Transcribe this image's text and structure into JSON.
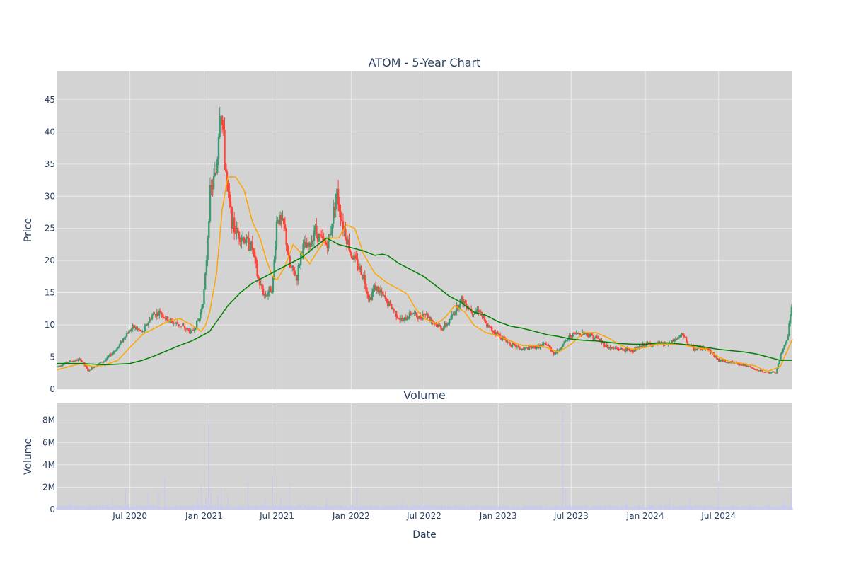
{
  "chart_data": [
    {
      "type": "candlestick",
      "title": "ATOM - 5-Year Chart",
      "ylabel": "Price",
      "ylim": [
        0,
        49.5
      ],
      "yticks": [
        0,
        5,
        10,
        15,
        20,
        25,
        30,
        35,
        40,
        45
      ],
      "xlim": [
        "2020-01-01",
        "2024-12-31"
      ],
      "grid": true,
      "legend": "none",
      "colors": {
        "up": "#3d9970",
        "down": "#ff4136",
        "ma_short": "#ffa500",
        "ma_long": "#008000",
        "plot_bg": "#d3d3d3",
        "grid": "#ebebeb"
      },
      "close_series": {
        "x": [
          "2020-01-01",
          "2020-02-01",
          "2020-03-01",
          "2020-03-20",
          "2020-04-01",
          "2020-05-01",
          "2020-06-01",
          "2020-06-20",
          "2020-07-10",
          "2020-08-01",
          "2020-08-25",
          "2020-09-15",
          "2020-10-01",
          "2020-11-01",
          "2020-12-01",
          "2020-12-20",
          "2020-12-31",
          "2021-01-05",
          "2021-01-15",
          "2021-02-01",
          "2021-02-10",
          "2021-02-20",
          "2021-03-01",
          "2021-03-15",
          "2021-04-01",
          "2021-04-15",
          "2021-05-01",
          "2021-05-15",
          "2021-06-01",
          "2021-06-20",
          "2021-07-01",
          "2021-07-20",
          "2021-08-01",
          "2021-08-20",
          "2021-09-01",
          "2021-09-20",
          "2021-10-01",
          "2021-10-20",
          "2021-11-01",
          "2021-11-10",
          "2021-11-25",
          "2021-12-10",
          "2022-01-01",
          "2022-01-20",
          "2022-02-01",
          "2022-02-15",
          "2022-03-01",
          "2022-03-20",
          "2022-04-01",
          "2022-04-20",
          "2022-05-01",
          "2022-05-10",
          "2022-06-01",
          "2022-06-20",
          "2022-07-01",
          "2022-08-01",
          "2022-08-15",
          "2022-09-01",
          "2022-10-01",
          "2022-11-01",
          "2022-11-15",
          "2022-12-01",
          "2023-01-01",
          "2023-02-01",
          "2023-03-01",
          "2023-04-01",
          "2023-05-01",
          "2023-05-20",
          "2023-06-01",
          "2023-07-01",
          "2023-08-01",
          "2023-09-01",
          "2023-10-01",
          "2023-11-01",
          "2023-12-01",
          "2024-01-01",
          "2024-02-01",
          "2024-03-01",
          "2024-04-01",
          "2024-04-20",
          "2024-05-01",
          "2024-06-01",
          "2024-07-01",
          "2024-08-01",
          "2024-09-01",
          "2024-10-01",
          "2024-11-01",
          "2024-11-20",
          "2024-12-01",
          "2024-12-20",
          "2024-12-31"
        ],
        "y": [
          3.5,
          4.3,
          4.6,
          2.8,
          3.5,
          4.5,
          6.5,
          8.5,
          9.7,
          8.8,
          11.5,
          12.0,
          10.8,
          10.0,
          8.8,
          11.0,
          14.5,
          18.0,
          30.0,
          34.0,
          45.0,
          37.0,
          30.0,
          25.0,
          24.0,
          23.0,
          22.0,
          17.0,
          14.5,
          16.0,
          27.0,
          25.0,
          19.0,
          17.5,
          22.0,
          22.0,
          25.0,
          23.0,
          22.5,
          24.0,
          31.0,
          26.0,
          21.0,
          19.0,
          17.5,
          14.0,
          16.0,
          14.5,
          13.5,
          12.0,
          11.0,
          10.5,
          12.0,
          11.0,
          12.0,
          10.0,
          9.5,
          10.5,
          14.0,
          12.0,
          12.5,
          10.0,
          8.5,
          7.0,
          6.2,
          6.5,
          7.0,
          5.5,
          6.2,
          8.5,
          8.8,
          8.0,
          6.5,
          6.2,
          6.0,
          7.0,
          7.0,
          7.0,
          8.5,
          6.8,
          6.2,
          6.5,
          4.5,
          4.2,
          3.8,
          3.0,
          2.6,
          2.6,
          5.0,
          8.5,
          14.0
        ]
      },
      "ma_short": {
        "x": [
          "2020-01-01",
          "2020-03-01",
          "2020-04-01",
          "2020-05-01",
          "2020-06-01",
          "2020-07-01",
          "2020-08-01",
          "2020-09-01",
          "2020-10-01",
          "2020-11-01",
          "2020-12-01",
          "2020-12-25",
          "2021-01-05",
          "2021-01-15",
          "2021-02-01",
          "2021-02-15",
          "2021-03-01",
          "2021-03-20",
          "2021-04-10",
          "2021-05-01",
          "2021-05-20",
          "2021-06-05",
          "2021-06-20",
          "2021-07-01",
          "2021-07-20",
          "2021-08-10",
          "2021-09-01",
          "2021-09-20",
          "2021-10-10",
          "2021-11-01",
          "2021-12-01",
          "2021-12-20",
          "2022-01-10",
          "2022-02-01",
          "2022-03-01",
          "2022-04-01",
          "2022-05-01",
          "2022-05-20",
          "2022-06-10",
          "2022-07-01",
          "2022-08-01",
          "2022-08-20",
          "2022-09-15",
          "2022-10-10",
          "2022-11-01",
          "2022-12-01",
          "2023-01-01",
          "2023-02-01",
          "2023-03-01",
          "2023-04-01",
          "2023-05-01",
          "2023-05-20",
          "2023-06-01",
          "2023-07-01",
          "2023-08-01",
          "2023-09-01",
          "2023-10-01",
          "2023-11-01",
          "2023-12-01",
          "2024-01-01",
          "2024-02-01",
          "2024-03-01",
          "2024-04-01",
          "2024-05-01",
          "2024-06-01",
          "2024-07-01",
          "2024-08-01",
          "2024-09-01",
          "2024-10-01",
          "2024-10-20",
          "2024-11-01",
          "2024-12-01",
          "2024-12-31"
        ],
        "y": [
          3.0,
          4.0,
          3.5,
          3.8,
          4.5,
          6.5,
          8.5,
          9.5,
          10.5,
          11.0,
          10.0,
          9.0,
          10.0,
          12.0,
          18.0,
          28.0,
          33.0,
          33.0,
          31.0,
          26.0,
          23.5,
          20.0,
          17.5,
          17.0,
          19.0,
          22.5,
          21.0,
          19.5,
          21.5,
          23.5,
          23.5,
          25.5,
          25.0,
          21.0,
          18.0,
          16.5,
          15.5,
          14.8,
          12.5,
          11.0,
          10.2,
          11.0,
          13.0,
          12.0,
          10.0,
          8.8,
          8.3,
          7.5,
          6.8,
          6.8,
          6.5,
          6.0,
          5.8,
          7.0,
          8.8,
          8.8,
          8.0,
          6.8,
          6.2,
          6.5,
          7.0,
          7.0,
          7.0,
          6.5,
          6.2,
          5.0,
          4.2,
          4.0,
          3.6,
          3.0,
          2.8,
          3.5,
          7.8
        ]
      },
      "ma_long": {
        "x": [
          "2020-01-01",
          "2020-03-01",
          "2020-05-01",
          "2020-07-01",
          "2020-08-01",
          "2020-09-01",
          "2020-10-01",
          "2020-11-01",
          "2020-12-01",
          "2021-01-01",
          "2021-01-15",
          "2021-02-01",
          "2021-03-01",
          "2021-04-01",
          "2021-05-01",
          "2021-06-01",
          "2021-07-01",
          "2021-08-01",
          "2021-09-01",
          "2021-10-01",
          "2021-11-01",
          "2021-12-01",
          "2022-01-01",
          "2022-02-01",
          "2022-03-01",
          "2022-03-20",
          "2022-04-01",
          "2022-05-01",
          "2022-06-01",
          "2022-07-01",
          "2022-08-01",
          "2022-09-01",
          "2022-10-01",
          "2022-11-01",
          "2022-12-01",
          "2023-01-01",
          "2023-02-01",
          "2023-03-01",
          "2023-04-01",
          "2023-05-01",
          "2023-06-01",
          "2023-07-01",
          "2023-08-01",
          "2023-09-01",
          "2023-10-01",
          "2023-11-01",
          "2023-12-01",
          "2024-01-01",
          "2024-02-01",
          "2024-03-01",
          "2024-04-01",
          "2024-05-01",
          "2024-06-01",
          "2024-07-01",
          "2024-08-01",
          "2024-09-01",
          "2024-10-01",
          "2024-11-01",
          "2024-12-01",
          "2024-12-31"
        ],
        "y": [
          4.0,
          4.0,
          3.8,
          4.0,
          4.5,
          5.2,
          6.0,
          6.8,
          7.5,
          8.5,
          9.0,
          10.5,
          13.0,
          15.0,
          16.5,
          17.5,
          18.5,
          19.5,
          20.5,
          22.0,
          23.5,
          22.5,
          22.0,
          21.5,
          20.8,
          21.0,
          20.8,
          19.5,
          18.5,
          17.5,
          16.0,
          14.5,
          13.5,
          12.0,
          11.5,
          10.5,
          9.8,
          9.5,
          9.0,
          8.5,
          8.2,
          7.8,
          7.6,
          7.5,
          7.3,
          7.1,
          7.0,
          7.0,
          7.2,
          7.2,
          7.0,
          6.8,
          6.5,
          6.2,
          6.0,
          5.8,
          5.5,
          5.0,
          4.5,
          4.5
        ]
      },
      "xticks": [
        {
          "date": "2020-07-01",
          "label": "Jul 2020"
        },
        {
          "date": "2021-01-01",
          "label": "Jan 2021"
        },
        {
          "date": "2021-07-01",
          "label": "Jul 2021"
        },
        {
          "date": "2022-01-01",
          "label": "Jan 2022"
        },
        {
          "date": "2022-07-01",
          "label": "Jul 2022"
        },
        {
          "date": "2023-01-01",
          "label": "Jan 2023"
        },
        {
          "date": "2023-07-01",
          "label": "Jul 2023"
        },
        {
          "date": "2024-01-01",
          "label": "Jan 2024"
        },
        {
          "date": "2024-07-01",
          "label": "Jul 2024"
        }
      ]
    },
    {
      "type": "bar",
      "title": "Volume",
      "xlabel": "Date",
      "ylabel": "Volume",
      "ylim": [
        0,
        9500000
      ],
      "yticks": [
        {
          "value": 0,
          "label": "0"
        },
        {
          "value": 2000000,
          "label": "2M"
        },
        {
          "value": 4000000,
          "label": "4M"
        },
        {
          "value": 6000000,
          "label": "6M"
        },
        {
          "value": 8000000,
          "label": "8M"
        }
      ],
      "bar_color": "#c9c9f0",
      "spikes": [
        {
          "date": "2020-02-01",
          "value": 700000
        },
        {
          "date": "2020-05-20",
          "value": 900000
        },
        {
          "date": "2020-06-20",
          "value": 1900000
        },
        {
          "date": "2020-08-15",
          "value": 1500000
        },
        {
          "date": "2020-09-10",
          "value": 1700000
        },
        {
          "date": "2020-09-25",
          "value": 2800000
        },
        {
          "date": "2020-12-15",
          "value": 900000
        },
        {
          "date": "2020-12-25",
          "value": 2200000
        },
        {
          "date": "2021-01-05",
          "value": 1200000
        },
        {
          "date": "2021-01-12",
          "value": 7700000
        },
        {
          "date": "2021-01-18",
          "value": 1900000
        },
        {
          "date": "2021-02-05",
          "value": 1300000
        },
        {
          "date": "2021-02-12",
          "value": 1900000
        },
        {
          "date": "2021-03-01",
          "value": 1300000
        },
        {
          "date": "2021-04-20",
          "value": 2400000
        },
        {
          "date": "2021-06-01",
          "value": 900000
        },
        {
          "date": "2021-06-20",
          "value": 3200000
        },
        {
          "date": "2021-07-10",
          "value": 1100000
        },
        {
          "date": "2021-08-01",
          "value": 2400000
        },
        {
          "date": "2021-11-01",
          "value": 900000
        },
        {
          "date": "2022-01-15",
          "value": 1800000
        },
        {
          "date": "2022-05-10",
          "value": 900000
        },
        {
          "date": "2023-06-10",
          "value": 8900000
        },
        {
          "date": "2023-06-18",
          "value": 1800000
        },
        {
          "date": "2023-11-15",
          "value": 700000
        },
        {
          "date": "2024-03-01",
          "value": 900000
        },
        {
          "date": "2024-04-20",
          "value": 1100000
        },
        {
          "date": "2024-07-01",
          "value": 2500000
        },
        {
          "date": "2024-11-01",
          "value": 700000
        },
        {
          "date": "2024-12-10",
          "value": 1000000
        },
        {
          "date": "2024-12-28",
          "value": 1900000
        }
      ]
    }
  ]
}
